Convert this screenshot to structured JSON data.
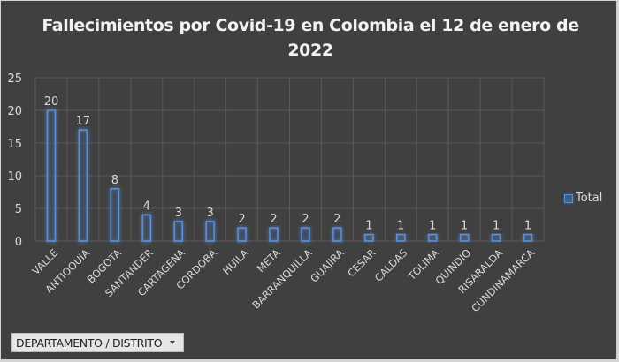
{
  "chart": {
    "title": "Fallecimientos por Covid-19 en Colombia el 12 de enero de 2022",
    "legend_label": "Total",
    "field_button_label": "DEPARTAMENTO / DISTRITO",
    "colors": {
      "background": "#404040",
      "gridline": "#595959",
      "bar_stroke": "#5b8fd6",
      "bar_glow": "#2e6ac2",
      "text": "#d9d9d9",
      "title": "#f2f2f2"
    }
  },
  "chart_data": {
    "type": "bar",
    "title": "Fallecimientos por Covid-19 en Colombia el 12 de enero de 2022",
    "xlabel": "",
    "ylabel": "",
    "categories": [
      "VALLE",
      "ANTIOQUIA",
      "BOGOTA",
      "SANTANDER",
      "CARTAGENA",
      "CORDOBA",
      "HUILA",
      "META",
      "BARRANQUILLA",
      "GUAJIRA",
      "CESAR",
      "CALDAS",
      "TOLIMA",
      "QUINDIO",
      "RISARALDA",
      "CUNDINAMARCA"
    ],
    "series": [
      {
        "name": "Total",
        "values": [
          20,
          17,
          8,
          4,
          3,
          3,
          2,
          2,
          2,
          2,
          1,
          1,
          1,
          1,
          1,
          1
        ]
      }
    ],
    "ylim": [
      0,
      25
    ],
    "yticks": [
      0,
      5,
      10,
      15,
      20,
      25
    ],
    "grid": true,
    "data_labels": true,
    "legend_position": "right",
    "x_tick_rotation": -45
  }
}
